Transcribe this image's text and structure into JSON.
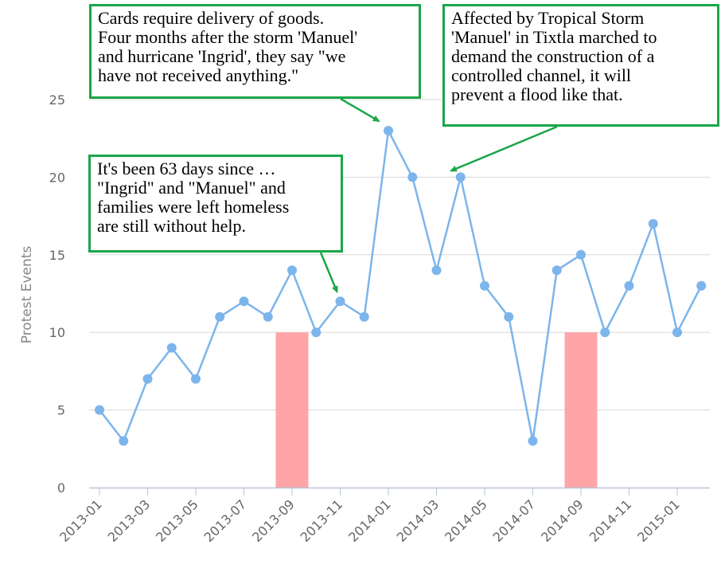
{
  "chart_data": {
    "type": "line",
    "ylabel": "Protest Events",
    "xlabel": "",
    "ylim": [
      0,
      25
    ],
    "y_ticks": [
      0,
      5,
      10,
      15,
      20,
      25
    ],
    "grid": true,
    "x_ticks": [
      "2013-01",
      "2013-03",
      "2013-05",
      "2013-07",
      "2013-09",
      "2013-11",
      "2014-01",
      "2014-03",
      "2014-05",
      "2014-07",
      "2014-09",
      "2014-11",
      "2015-01"
    ],
    "x": [
      "2013-01",
      "2013-02",
      "2013-03",
      "2013-04",
      "2013-05",
      "2013-06",
      "2013-07",
      "2013-08",
      "2013-09",
      "2013-10",
      "2013-11",
      "2013-12",
      "2014-01",
      "2014-02",
      "2014-03",
      "2014-04",
      "2014-05",
      "2014-06",
      "2014-07",
      "2014-08",
      "2014-09",
      "2014-10",
      "2014-11",
      "2014-12",
      "2015-01",
      "2015-02"
    ],
    "series": [
      {
        "values": [
          5,
          3,
          7,
          9,
          7,
          11,
          12,
          11,
          14,
          10,
          12,
          11,
          23,
          20,
          14,
          20,
          13,
          11,
          3,
          14,
          15,
          10,
          13,
          17,
          10,
          13
        ],
        "color": "#7cb5ec"
      }
    ],
    "highlight_bars": [
      {
        "x": "2013-09",
        "value": 10,
        "color": "#ffa5a8"
      },
      {
        "x": "2014-09",
        "value": 10,
        "color": "#ffa5a8"
      }
    ],
    "annotations": [
      {
        "text": "Cards require delivery of goods.\nFour months after the storm 'Manuel'\nand hurricane 'Ingrid',  they say \"we\nhave not received anything.\"",
        "target_x": "2014-01",
        "target_y": 23
      },
      {
        "text": "Affected by Tropical Storm\n'Manuel' in Tixtla marched to\ndemand the construction of a\ncontrolled channel, it will\nprevent a flood like that.",
        "target_x": "2014-04",
        "target_y": 20
      },
      {
        "text": "It's been 63 days since …\n\"Ingrid\" and \"Manuel\" and\nfamilies were left homeless\nare still without help.",
        "target_x": "2013-11",
        "target_y": 12
      }
    ],
    "annotation_border_color": "#1aa64a"
  }
}
